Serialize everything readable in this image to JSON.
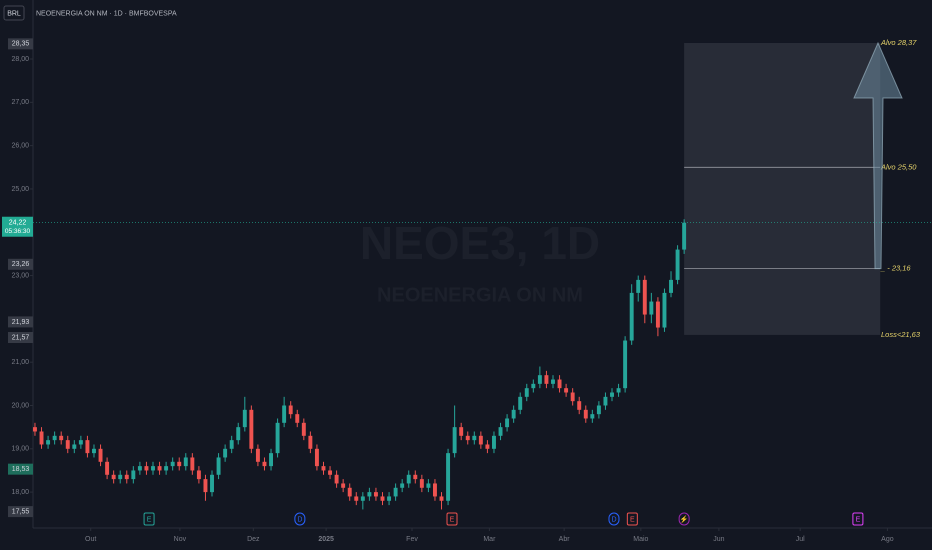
{
  "chart_data": {
    "type": "candlestick",
    "currency": "BRL",
    "title": "NEOENERGIA ON NM · 1D · BMFBOVESPA",
    "watermark": {
      "symbol": "NEOE3, 1D",
      "name": "NEOENERGIA ON NM"
    },
    "up_color": "#26a69a",
    "down_color": "#ef5350",
    "xlim": [
      -0.3,
      136.8
    ],
    "xticks": [
      {
        "value": 8.5,
        "label": "Out"
      },
      {
        "value": 22.1,
        "label": "Nov"
      },
      {
        "value": 33.3,
        "label": "Dez"
      },
      {
        "value": 44.4,
        "label": "2025"
      },
      {
        "value": 57.5,
        "label": "Fev"
      },
      {
        "value": 69.3,
        "label": "Mar"
      },
      {
        "value": 80.7,
        "label": "Abr"
      },
      {
        "value": 92.4,
        "label": "Maio"
      },
      {
        "value": 104.3,
        "label": "Jun"
      },
      {
        "value": 116.7,
        "label": "Jul"
      },
      {
        "value": 130,
        "label": "Ago"
      }
    ],
    "ylim": [
      17.31,
      28.67
    ],
    "yticks": [
      {
        "value": 18,
        "label": "18,00"
      },
      {
        "value": 19,
        "label": "19,00"
      },
      {
        "value": 20,
        "label": "20,00"
      },
      {
        "value": 21,
        "label": "21,00"
      },
      {
        "value": 23,
        "label": "23,00"
      },
      {
        "value": 25,
        "label": "25,00"
      },
      {
        "value": 26,
        "label": "26,00"
      },
      {
        "value": 27,
        "label": "27,00"
      },
      {
        "value": 28,
        "label": "28,00"
      }
    ],
    "series": {
      "open": [
        19.5,
        19.4,
        19.1,
        19.2,
        19.3,
        19.2,
        19.0,
        19.1,
        19.2,
        18.9,
        19.0,
        18.7,
        18.4,
        18.3,
        18.4,
        18.3,
        18.5,
        18.6,
        18.5,
        18.6,
        18.5,
        18.6,
        18.7,
        18.6,
        18.8,
        18.5,
        18.3,
        18.0,
        18.4,
        18.8,
        19.0,
        19.2,
        19.5,
        19.9,
        19.0,
        18.7,
        18.6,
        18.9,
        19.6,
        20.0,
        19.8,
        19.6,
        19.3,
        19.0,
        18.6,
        18.5,
        18.4,
        18.2,
        18.1,
        17.9,
        17.8,
        17.9,
        18.0,
        17.9,
        17.8,
        17.9,
        18.1,
        18.2,
        18.4,
        18.3,
        18.1,
        18.2,
        17.9,
        17.8,
        18.9,
        19.5,
        19.3,
        19.2,
        19.3,
        19.1,
        19.0,
        19.3,
        19.5,
        19.7,
        19.9,
        20.2,
        20.4,
        20.5,
        20.7,
        20.5,
        20.6,
        20.4,
        20.3,
        20.1,
        19.9,
        19.7,
        19.8,
        20.0,
        20.2,
        20.3,
        20.4,
        21.5,
        22.6,
        22.9,
        22.1,
        22.4,
        21.8,
        22.6,
        22.9,
        23.6
      ],
      "high": [
        19.6,
        19.5,
        19.3,
        19.4,
        19.4,
        19.3,
        19.2,
        19.3,
        19.3,
        19.1,
        19.1,
        18.8,
        18.5,
        18.5,
        18.5,
        18.6,
        18.7,
        18.7,
        18.7,
        18.7,
        18.7,
        18.8,
        18.8,
        18.9,
        18.9,
        18.6,
        18.4,
        18.5,
        18.9,
        19.1,
        19.3,
        19.6,
        20.2,
        20.0,
        19.1,
        18.8,
        19.0,
        19.7,
        20.2,
        20.1,
        19.9,
        19.7,
        19.4,
        19.1,
        18.7,
        18.6,
        18.5,
        18.3,
        18.2,
        18.0,
        18.0,
        18.1,
        18.1,
        18.0,
        18.0,
        18.2,
        18.3,
        18.5,
        18.5,
        18.4,
        18.3,
        18.3,
        18.0,
        19.0,
        20.0,
        19.6,
        19.4,
        19.4,
        19.4,
        19.2,
        19.4,
        19.6,
        19.8,
        20.0,
        20.3,
        20.5,
        20.6,
        20.9,
        20.8,
        20.7,
        20.7,
        20.5,
        20.4,
        20.2,
        20.0,
        19.9,
        20.1,
        20.3,
        20.4,
        20.5,
        21.6,
        22.8,
        23.0,
        23.0,
        22.6,
        22.5,
        22.7,
        23.1,
        23.7,
        24.3
      ],
      "low": [
        19.3,
        19.0,
        19.0,
        19.1,
        19.1,
        18.9,
        18.9,
        19.0,
        18.8,
        18.8,
        18.6,
        18.3,
        18.2,
        18.2,
        18.2,
        18.2,
        18.4,
        18.4,
        18.4,
        18.4,
        18.4,
        18.5,
        18.5,
        18.5,
        18.4,
        18.2,
        17.8,
        17.9,
        18.3,
        18.7,
        18.9,
        19.1,
        19.4,
        18.9,
        18.6,
        18.5,
        18.5,
        18.8,
        19.5,
        19.7,
        19.5,
        19.2,
        18.9,
        18.5,
        18.4,
        18.3,
        18.1,
        18.0,
        17.8,
        17.7,
        17.6,
        17.8,
        17.8,
        17.7,
        17.7,
        17.8,
        18.0,
        18.1,
        18.2,
        18.0,
        18.0,
        17.8,
        17.6,
        17.7,
        18.8,
        19.2,
        19.1,
        19.1,
        19.0,
        18.9,
        18.9,
        19.2,
        19.4,
        19.6,
        19.8,
        20.1,
        20.3,
        20.4,
        20.4,
        20.4,
        20.3,
        20.2,
        20.0,
        19.8,
        19.6,
        19.6,
        19.7,
        19.9,
        20.1,
        20.2,
        20.3,
        21.4,
        22.4,
        21.9,
        21.9,
        21.6,
        21.7,
        22.5,
        22.8,
        23.5
      ],
      "close": [
        19.4,
        19.1,
        19.2,
        19.3,
        19.2,
        19.0,
        19.1,
        19.2,
        18.9,
        19.0,
        18.7,
        18.4,
        18.3,
        18.4,
        18.3,
        18.5,
        18.6,
        18.5,
        18.6,
        18.5,
        18.6,
        18.7,
        18.6,
        18.8,
        18.5,
        18.3,
        18.0,
        18.4,
        18.8,
        19.0,
        19.2,
        19.5,
        19.9,
        19.0,
        18.7,
        18.6,
        18.9,
        19.6,
        20.0,
        19.8,
        19.6,
        19.3,
        19.0,
        18.6,
        18.5,
        18.4,
        18.2,
        18.1,
        17.9,
        17.8,
        17.9,
        18.0,
        17.9,
        17.8,
        17.9,
        18.1,
        18.2,
        18.4,
        18.3,
        18.1,
        18.2,
        17.9,
        17.8,
        18.9,
        19.5,
        19.3,
        19.2,
        19.3,
        19.1,
        19.0,
        19.3,
        19.5,
        19.7,
        19.9,
        20.2,
        20.4,
        20.5,
        20.7,
        20.5,
        20.6,
        20.4,
        20.3,
        20.1,
        19.9,
        19.7,
        19.8,
        20.0,
        20.2,
        20.3,
        20.4,
        21.5,
        22.6,
        22.9,
        22.1,
        22.4,
        21.8,
        22.6,
        22.9,
        23.6,
        24.22
      ]
    },
    "last_price": {
      "value": 24.22,
      "label": "24,22",
      "countdown": "05:36:30",
      "color": "#22ab94"
    },
    "price_labels": [
      {
        "value": 28.35,
        "label": "28,35",
        "color": "#363a45"
      },
      {
        "value": 23.26,
        "label": "23,26",
        "color": "#363a45"
      },
      {
        "value": 21.93,
        "label": "21,93",
        "color": "#363a45"
      },
      {
        "value": 21.57,
        "label": "21,57",
        "color": "#363a45"
      },
      {
        "value": 18.53,
        "label": "18,53",
        "color": "#1e6e5c"
      },
      {
        "value": 17.55,
        "label": "17,55",
        "color": "#363a45"
      }
    ],
    "annotations": [
      {
        "value": 28.37,
        "label": "Alvo 28,37"
      },
      {
        "value": 25.5,
        "label": "Alvo 25,50"
      },
      {
        "value": 23.16,
        "label": "_ - 23,16"
      },
      {
        "value": 21.63,
        "label": "Loss<21,63"
      }
    ],
    "events": [
      {
        "x": 17.4,
        "label": "E",
        "color": "#26a69a"
      },
      {
        "x": 40.4,
        "label": "D",
        "color": "#2962ff"
      },
      {
        "x": 63.6,
        "label": "E",
        "color": "#ef5350"
      },
      {
        "x": 88.3,
        "label": "D",
        "color": "#2962ff"
      },
      {
        "x": 91.1,
        "label": "E",
        "color": "#ef5350"
      },
      {
        "x": 99,
        "label": "⚡",
        "color": "#9c27b0"
      },
      {
        "x": 125.5,
        "label": "E",
        "color": "#e040fb"
      }
    ]
  }
}
